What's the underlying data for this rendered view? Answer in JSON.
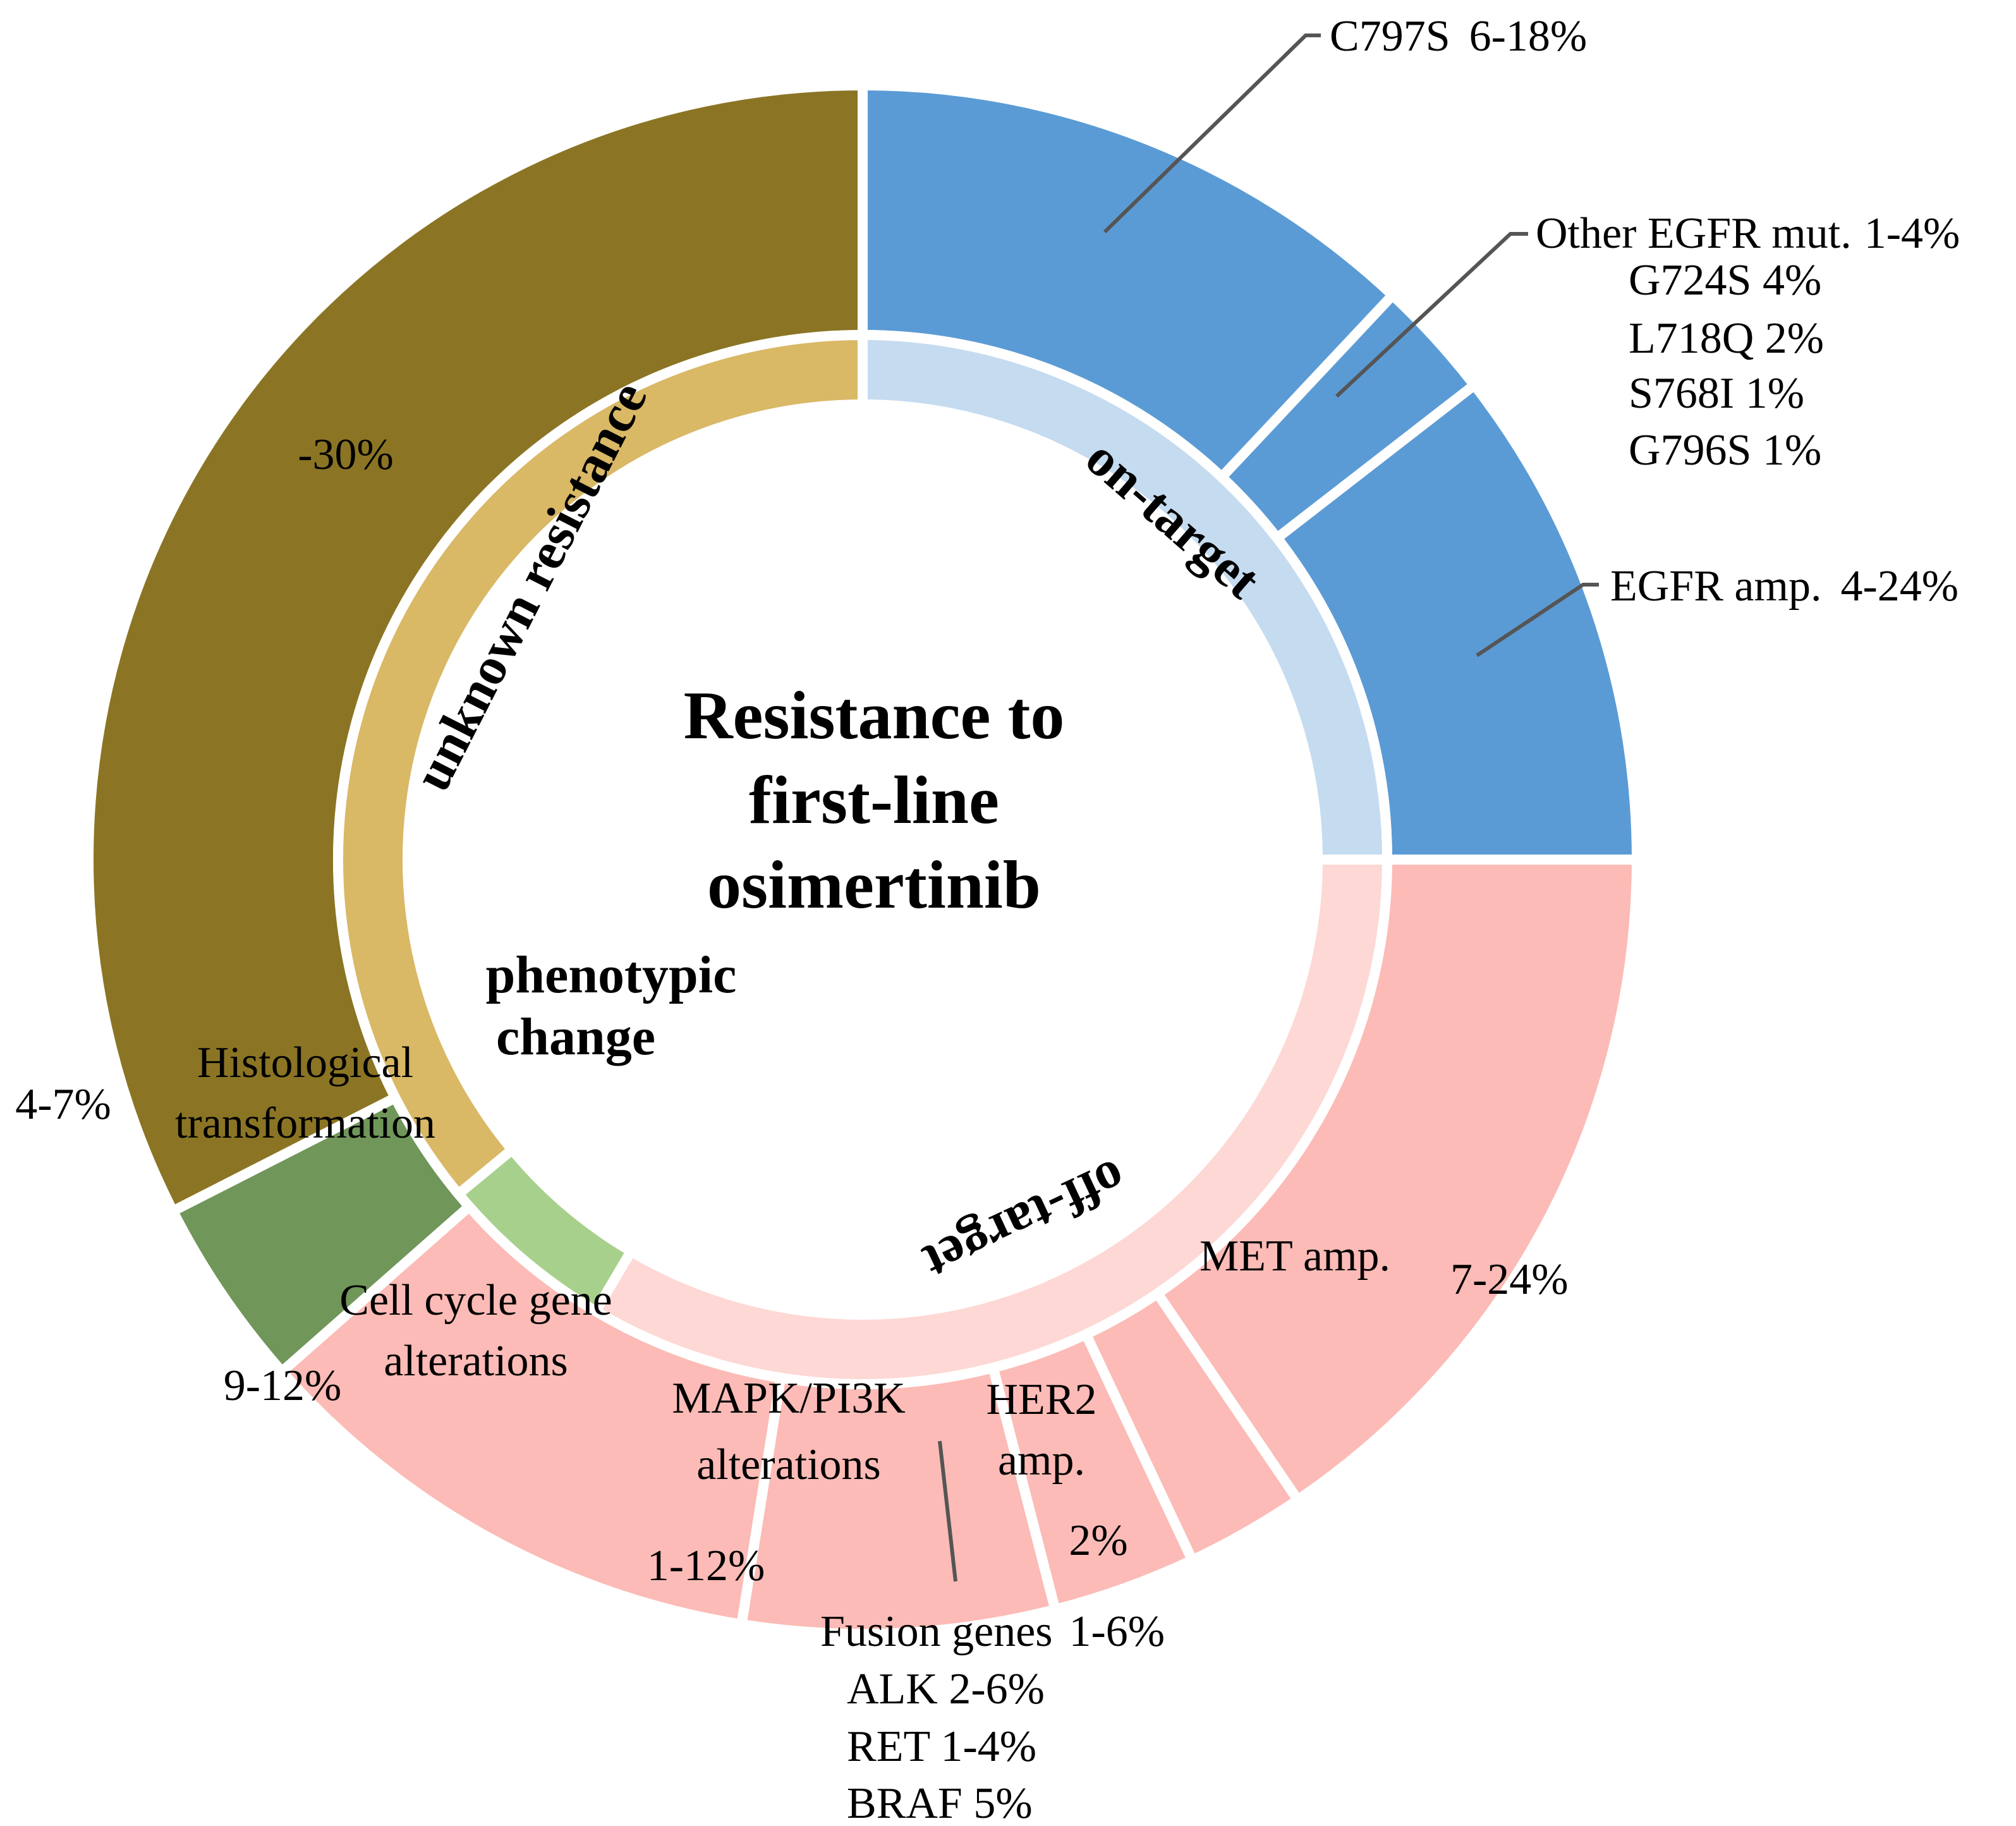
{
  "chart_data": {
    "type": "donut",
    "title": "Resistance to first-line osimertinib",
    "title_lines": [
      "Resistance to",
      "first-line",
      "osimertinib"
    ],
    "inner_ring": [
      {
        "id": "on",
        "label": "on-target",
        "value": 25,
        "color": "#c5dbf0"
      },
      {
        "id": "off",
        "label": "off-target",
        "value": 33.5,
        "color": "#fdd8d4"
      },
      {
        "id": "pheno",
        "label_lines": [
          "phenotypic",
          "change"
        ],
        "value": 5.5,
        "color": "#a8d08d"
      },
      {
        "id": "unknown",
        "label": "unknown resistance",
        "value": 36,
        "color": "#d9b866"
      }
    ],
    "outer_ring": [
      {
        "id": "c797s",
        "label": "C797S",
        "range": "6-18%",
        "value": 12,
        "color": "#5b9bd5"
      },
      {
        "id": "other_egfr",
        "label": "Other EGFR mut.",
        "range": "1-4%",
        "value": 2.5,
        "color": "#5b9bd5",
        "details": [
          "G724S 4%",
          "L718Q 2%",
          "S768I 1%",
          "G796S 1%"
        ]
      },
      {
        "id": "egfr_amp",
        "label": "EGFR amp.",
        "range": "4-24%",
        "value": 10.5,
        "color": "#5b9bd5"
      },
      {
        "id": "met_amp",
        "label": "MET amp.",
        "range": "7-24%",
        "value": 15.5,
        "color": "#fcbbb6"
      },
      {
        "id": "her2_amp",
        "label_lines": [
          "HER2",
          "amp."
        ],
        "range": "2%",
        "value": 2.5,
        "color": "#fcbbb6"
      },
      {
        "id": "fusion",
        "label": "Fusion genes",
        "range": "1-6%",
        "value": 3,
        "color": "#fcbbb6",
        "details": [
          "ALK 2-6%",
          "RET 1-4%",
          "BRAF 5%"
        ]
      },
      {
        "id": "mapk",
        "label_lines": [
          "MAPK/PI3K",
          "alterations"
        ],
        "range": "1-12%",
        "value": 6.5,
        "color": "#fcbbb6"
      },
      {
        "id": "cell_cycle",
        "label_lines": [
          "Cell cycle gene",
          "alterations"
        ],
        "range": "9-12%",
        "value": 11,
        "color": "#fcbbb6"
      },
      {
        "id": "histo",
        "label_lines": [
          "Histological",
          "transformation"
        ],
        "range": "4-7%",
        "value": 4,
        "color": "#70965a"
      },
      {
        "id": "unknown_outer",
        "label": "",
        "range": "-30%",
        "value": 32.5,
        "color": "#8b7524"
      }
    ]
  }
}
